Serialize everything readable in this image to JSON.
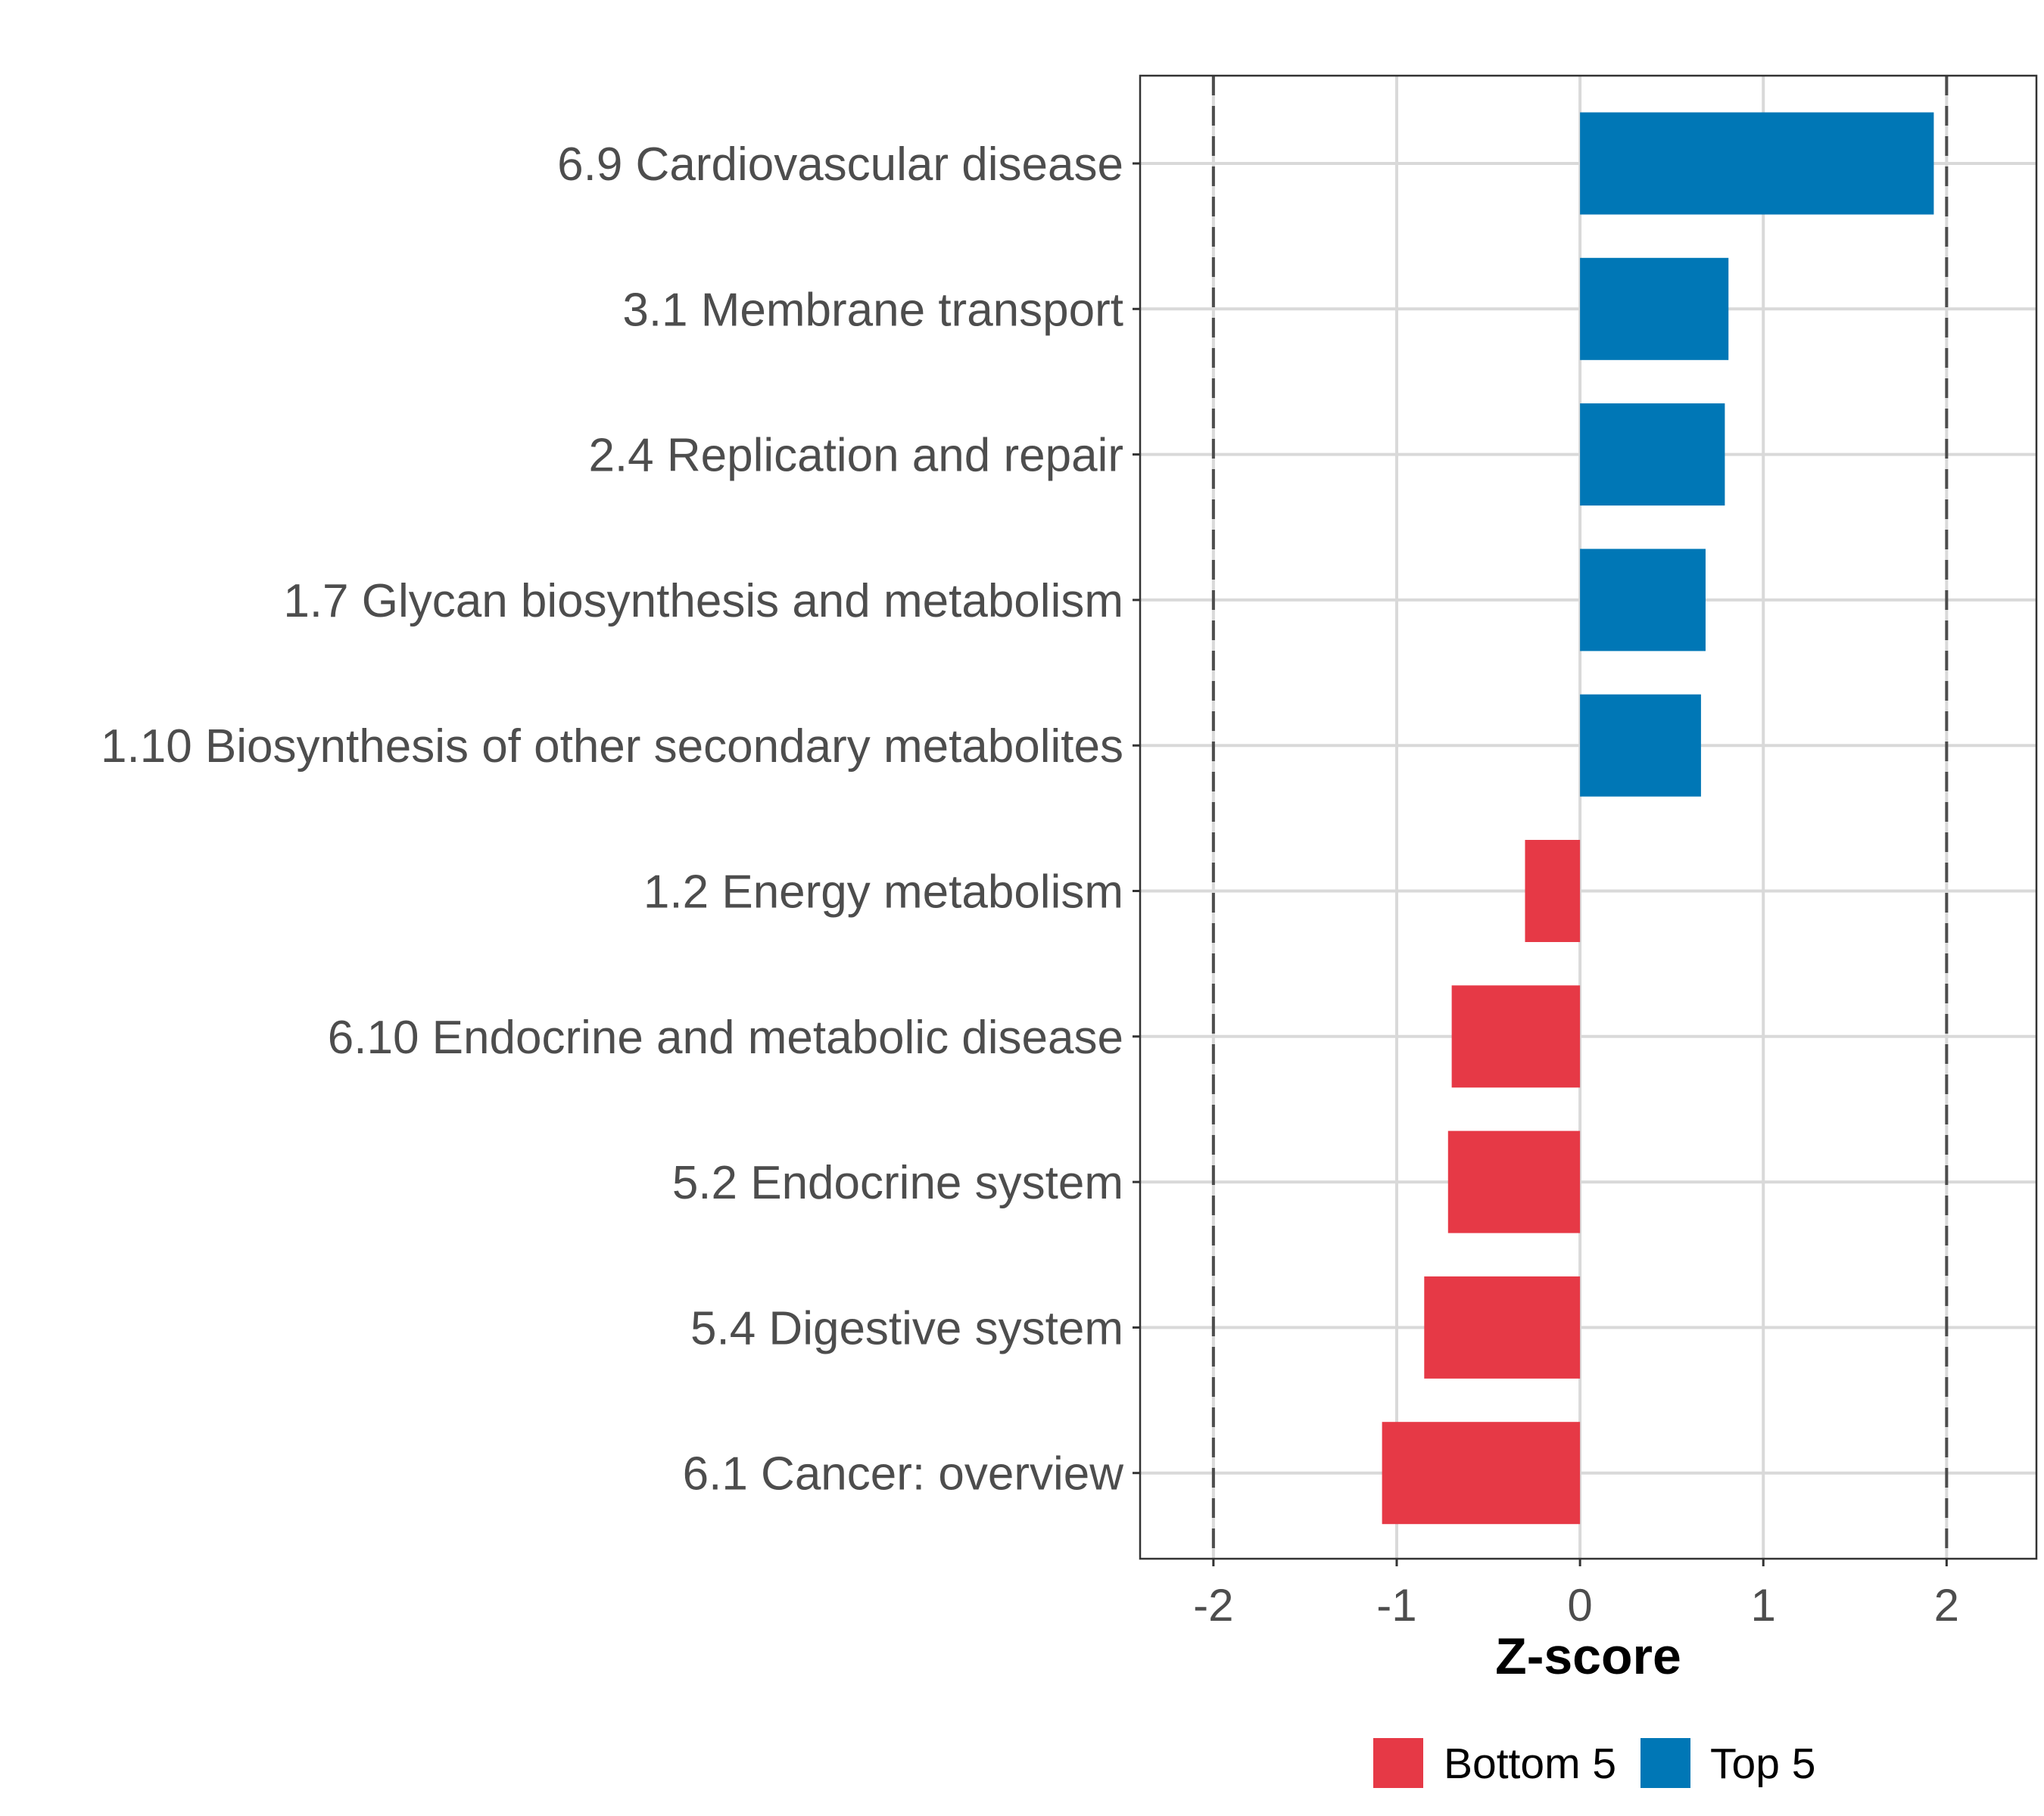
{
  "chart_data": {
    "type": "bar",
    "orientation": "horizontal",
    "title": "",
    "xlabel": "Z-score",
    "ylabel": "",
    "xlim": [
      -2.4,
      2.49
    ],
    "xticks": [
      -2,
      -1,
      0,
      1,
      2
    ],
    "xtick_labels": [
      "-2",
      "-1",
      "0",
      "1",
      "2"
    ],
    "reference_lines": [
      -2,
      2
    ],
    "grid": true,
    "categories": [
      "6.9 Cardiovascular disease",
      "3.1 Membrane transport",
      "2.4 Replication and repair",
      "1.7 Glycan biosynthesis and metabolism",
      "1.10 Biosynthesis of other secondary metabolites",
      "1.2 Energy metabolism",
      "6.10 Endocrine and metabolic disease",
      "5.2 Endocrine system",
      "5.4 Digestive system",
      "6.1 Cancer: overview"
    ],
    "values": [
      1.93,
      0.81,
      0.79,
      0.685,
      0.66,
      -0.3,
      -0.7,
      -0.72,
      -0.85,
      -1.08
    ],
    "groups": [
      "Top 5",
      "Top 5",
      "Top 5",
      "Top 5",
      "Top 5",
      "Bottom 5",
      "Bottom 5",
      "Bottom 5",
      "Bottom 5",
      "Bottom 5"
    ],
    "legend": {
      "placement": "bottom",
      "entries": [
        {
          "label": "Bottom 5",
          "color": "#E63946"
        },
        {
          "label": "Top 5",
          "color": "#0077B6"
        }
      ]
    }
  }
}
